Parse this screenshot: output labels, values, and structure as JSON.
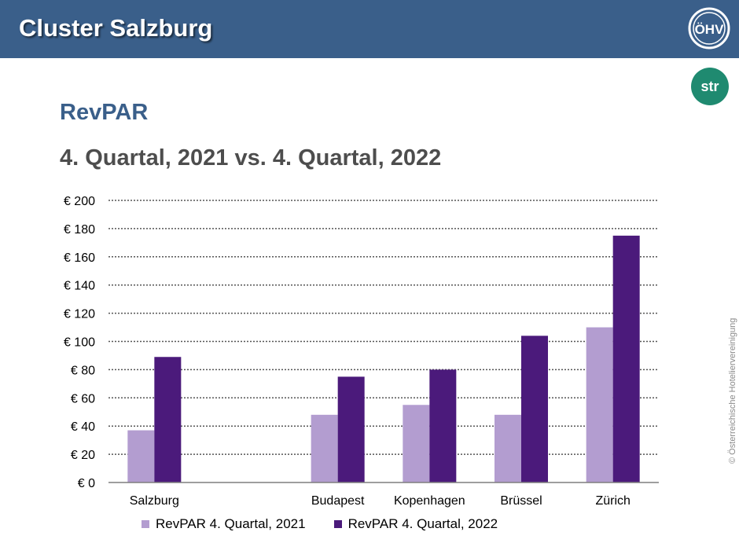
{
  "header": {
    "title": "Cluster Salzburg",
    "logo_text": "ÖHV",
    "bg_color": "#3a5f8a"
  },
  "str_logo": {
    "text": "str",
    "color": "#1f8a70"
  },
  "subtitle": "RevPAR",
  "period": "4. Quartal, 2021 vs. 4. Quartal, 2022",
  "copyright": "© Österreichische Hoteliervereinigung",
  "chart_data": {
    "type": "bar",
    "categories": [
      "Salzburg",
      "",
      "Budapest",
      "Kopenhagen",
      "Brüssel",
      "Zürich"
    ],
    "series": [
      {
        "name": "RevPAR 4. Quartal, 2021",
        "values": [
          37,
          null,
          48,
          55,
          48,
          110
        ],
        "color": "#b39dd0"
      },
      {
        "name": "RevPAR 4. Quartal, 2022",
        "values": [
          89,
          null,
          75,
          80,
          104,
          175
        ],
        "color": "#4b1a7b"
      }
    ],
    "ylim": [
      0,
      200
    ],
    "yticks": [
      0,
      20,
      40,
      60,
      80,
      100,
      120,
      140,
      160,
      180,
      200
    ],
    "ytick_prefix": "€ ",
    "grid": true,
    "legend": "bottom"
  }
}
